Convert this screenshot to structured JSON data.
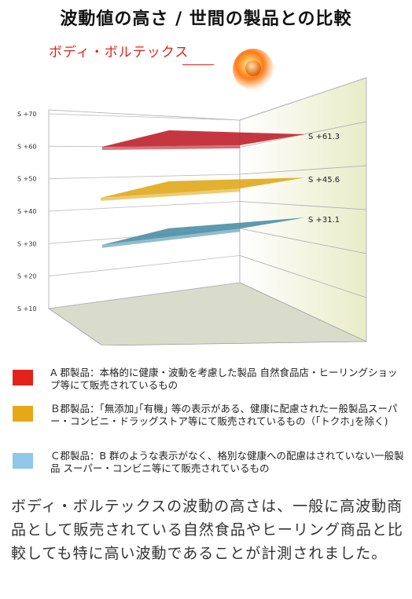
{
  "title": "波動値の高さ / 世間の製品との比較",
  "brand": "ボディ・ボルテックス",
  "chart_data": {
    "type": "bar",
    "ytick_labels": [
      "S +10",
      "S +20",
      "S +30",
      "S +40",
      "S +50",
      "S +60",
      "S +70"
    ],
    "ylim": [
      10,
      70
    ],
    "series": [
      {
        "label": "S +61.3",
        "value": 61.3,
        "color": "#c0202c"
      },
      {
        "label": "S +45.6",
        "value": 45.6,
        "color": "#e0a818"
      },
      {
        "label": "S +31.1",
        "value": 31.1,
        "color": "#4b8fa6"
      }
    ]
  },
  "legend": [
    {
      "color": "#e2231a",
      "text": "A 郡製品：本格的に健康・波動を考慮した製品 自然食品店・ヒーリングショップ等にて販売されているもの"
    },
    {
      "color": "#e6a817",
      "text": "Ｂ郡製品：｢無添加｣｢有機｣ 等の表示がある、健康に配慮されたー般製品スーパー・コンビニ・ドラッグストア等にて販売されているもの（｢トクホ｣を除く)"
    },
    {
      "color": "#8ec7ea",
      "text": "Ｃ郡製品：B 群のような表示がなく、格別な健康への配慮はされていない一般製品 スーパー・コンビニ等にて販売されているもの"
    }
  ],
  "body": "ボディ・ボルテックスの波動の高さは、一般に高波動商品として販売されている自然食品やヒーリング商品と比較しても特に高い波動であることが計測されました。"
}
